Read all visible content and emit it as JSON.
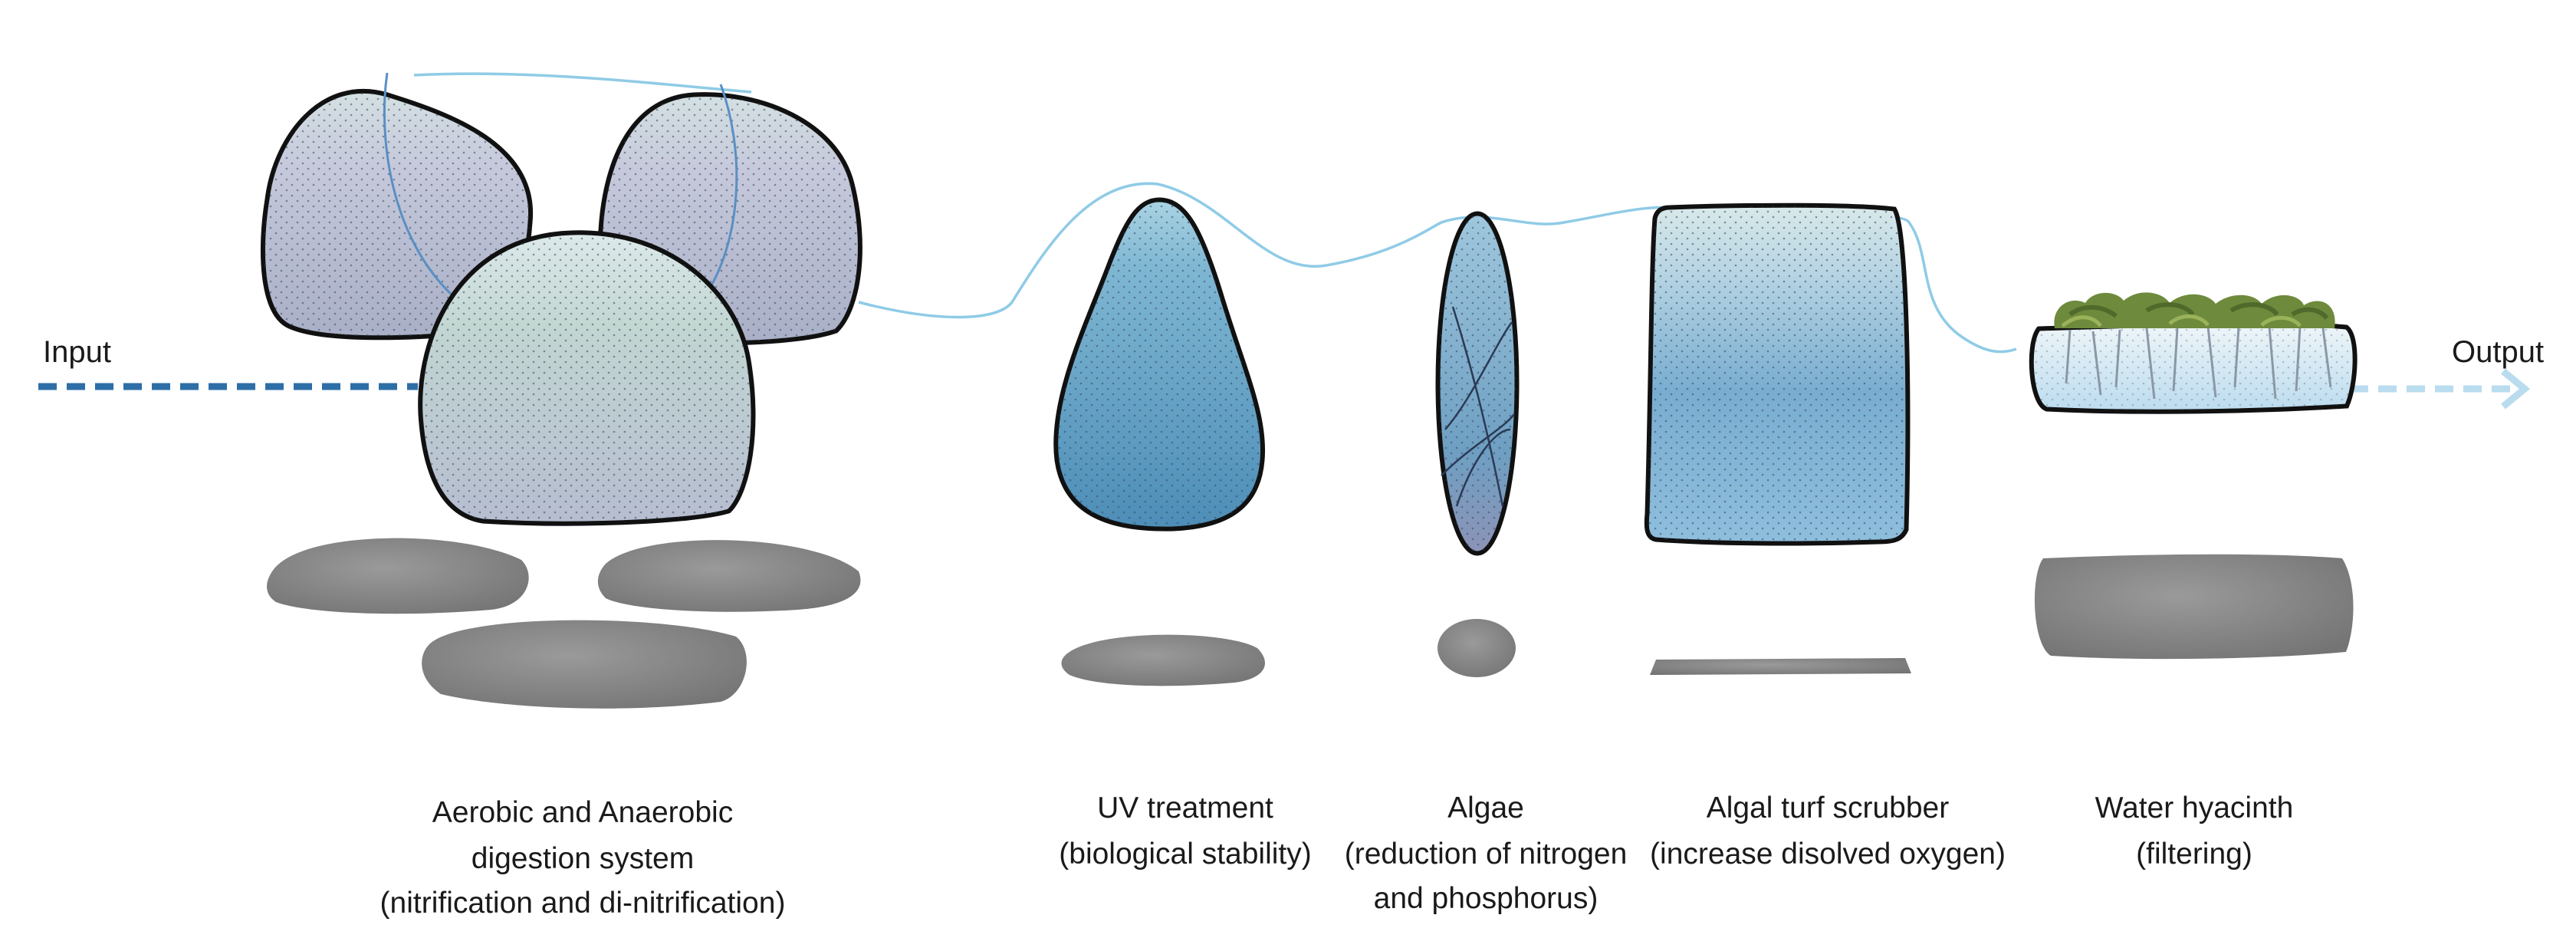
{
  "flow": {
    "input_label": "Input",
    "output_label": "Output"
  },
  "stages": [
    {
      "id": "digestion",
      "lines": [
        "Aerobic and Anaerobic",
        "digestion system",
        "(nitrification and di-nitrification)"
      ]
    },
    {
      "id": "uv",
      "lines": [
        "UV treatment",
        "(biological stability)"
      ]
    },
    {
      "id": "algae",
      "lines": [
        "Algae",
        "(reduction of nitrogen",
        "and phosphorus)"
      ]
    },
    {
      "id": "scrubber",
      "lines": [
        "Algal turf scrubber",
        "(increase disolved oxygen)"
      ]
    },
    {
      "id": "hyacinth",
      "lines": [
        "Water hyacinth",
        "(filtering)"
      ]
    }
  ],
  "colors": {
    "input_arrow": "#2e6ea6",
    "output_arrow": "#b9dcef",
    "pipe": "#8fcbe6",
    "outline": "#111111",
    "stone": "#8c8c8c",
    "tank_gray": "#b9bfd2",
    "tank_green": "#c4d8d6",
    "water_blue": "#5d9dc7",
    "plant_green": "#6e8a3c"
  }
}
